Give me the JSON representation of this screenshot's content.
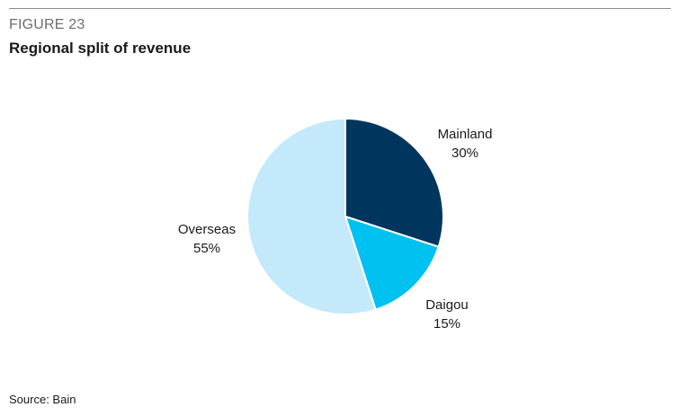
{
  "figure": {
    "label": "FIGURE 23",
    "title": "Regional split of revenue",
    "source": "Source: Bain"
  },
  "chart_data": {
    "type": "pie",
    "start": "12 o'clock, clockwise",
    "slices": [
      {
        "name": "Mainland",
        "value": 30,
        "label": "30%",
        "color": "#00365d"
      },
      {
        "name": "Daigou",
        "value": 15,
        "label": "15%",
        "color": "#00c1f0"
      },
      {
        "name": "Overseas",
        "value": 55,
        "label": "55%",
        "color": "#c3e9fa"
      }
    ],
    "slice_border_color": "#ffffff",
    "legend": "none (labels beside slices)"
  }
}
